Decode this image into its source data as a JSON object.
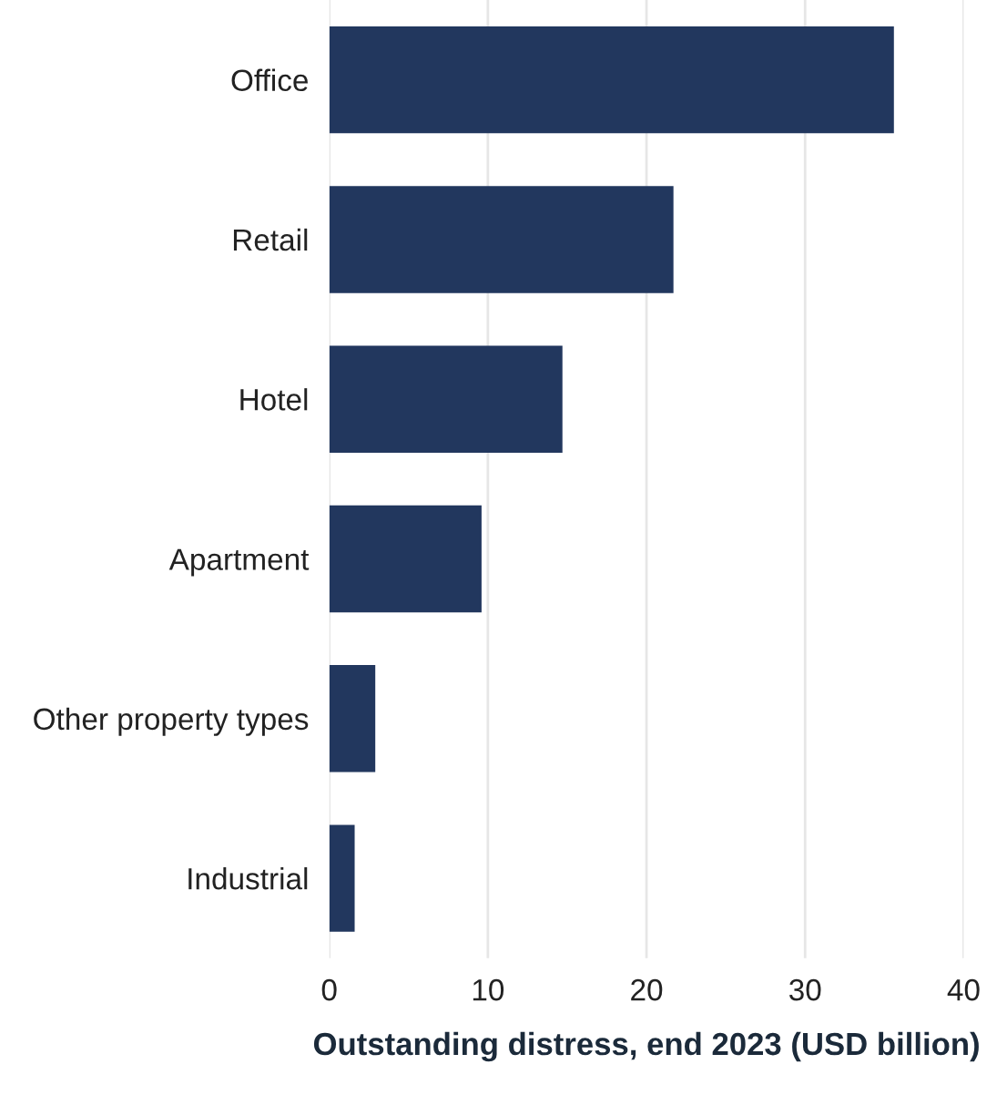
{
  "chart_data": {
    "type": "bar",
    "orientation": "horizontal",
    "xlabel": "Outstanding distress, end 2023 (USD billion)",
    "categories": [
      "Office",
      "Retail",
      "Hotel",
      "Apartment",
      "Other property types",
      "Industrial"
    ],
    "values": [
      35.6,
      21.7,
      14.7,
      9.6,
      2.9,
      1.6
    ],
    "color": "#22375e",
    "xlim": [
      0,
      40
    ],
    "xticks": [
      0,
      10,
      20,
      30,
      40
    ],
    "grid": "x"
  }
}
